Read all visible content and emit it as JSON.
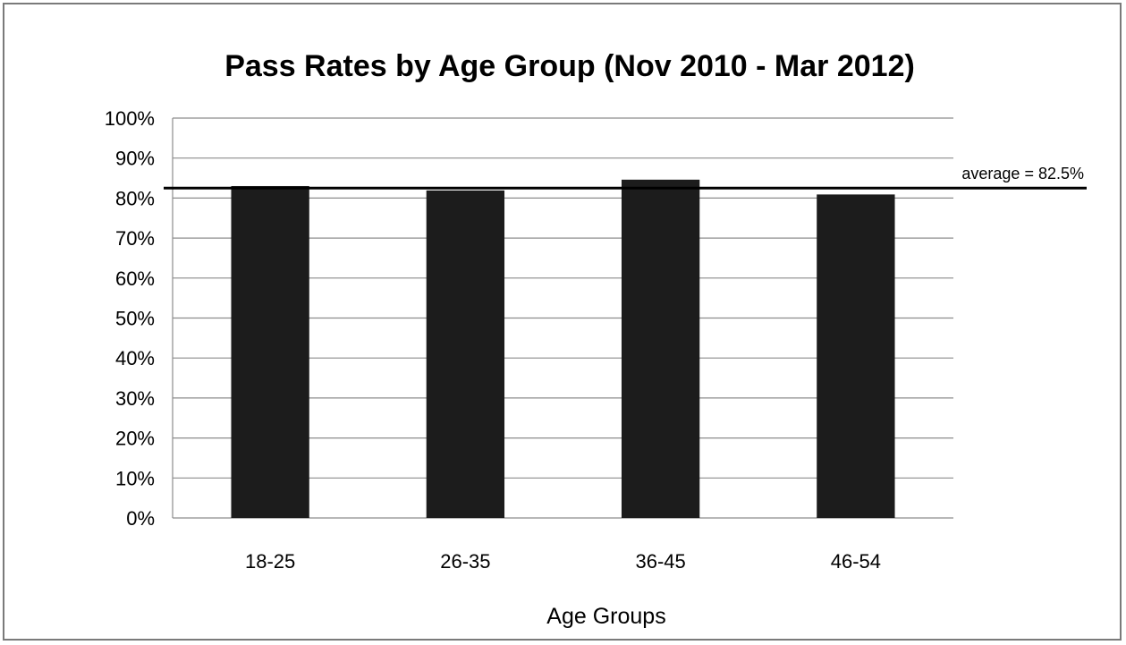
{
  "chart_data": {
    "type": "bar",
    "title": "Pass Rates by Age Group (Nov 2010 - Mar 2012)",
    "xlabel": "Age Groups",
    "ylabel": "",
    "categories": [
      "18-25",
      "26-35",
      "36-45",
      "46-54"
    ],
    "values": [
      83,
      81.9,
      84.6,
      80.9
    ],
    "ylim": [
      0,
      100
    ],
    "yticks": [
      0,
      10,
      20,
      30,
      40,
      50,
      60,
      70,
      80,
      90,
      100
    ],
    "ytick_labels": [
      "0%",
      "10%",
      "20%",
      "30%",
      "40%",
      "50%",
      "60%",
      "70%",
      "80%",
      "90%",
      "100%"
    ],
    "reference_line": {
      "value": 82.5,
      "label": "average = 82.5%"
    },
    "grid": true,
    "legend": "none",
    "bar_color": "#1c1c1c",
    "grid_color": "#8c8c8c",
    "line_color": "#000000"
  }
}
